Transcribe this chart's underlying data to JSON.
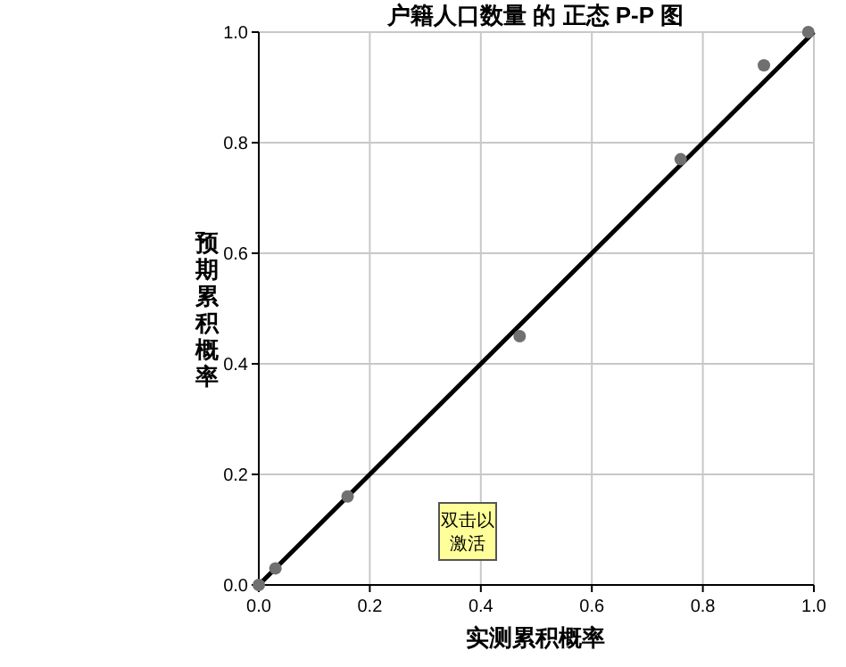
{
  "chart_data": {
    "type": "scatter",
    "title": "户籍人口数量 的 正态 P-P 图",
    "xlabel": "实测累积概率",
    "ylabel": "预期累积概率",
    "annotations": [
      "双击以激活"
    ],
    "series": [
      {
        "color": "#707070",
        "marker": "circle",
        "x": [
          0.0,
          0.03,
          0.16,
          0.47,
          0.76,
          0.91,
          0.99
        ],
        "values": [
          0.0,
          0.03,
          0.16,
          0.45,
          0.77,
          0.94,
          1.0
        ]
      },
      {
        "type": "line",
        "color": "#000000",
        "marker": "none",
        "line_style": "solid",
        "x": [
          0,
          1
        ],
        "values": [
          0,
          1
        ]
      }
    ],
    "xlim": [
      0,
      1
    ],
    "ylim": [
      0,
      1
    ],
    "xticks": [
      {
        "value": 0,
        "label": "0.0"
      },
      {
        "value": 0.2,
        "label": "0.2"
      },
      {
        "value": 0.4,
        "label": "0.4"
      },
      {
        "value": 0.6,
        "label": "0.6"
      },
      {
        "value": 0.8,
        "label": "0.8"
      },
      {
        "value": 1,
        "label": "1.0"
      }
    ],
    "yticks": [
      {
        "value": 0,
        "label": "0.0"
      },
      {
        "value": 0.2,
        "label": "0.2"
      },
      {
        "value": 0.4,
        "label": "0.4"
      },
      {
        "value": 0.6,
        "label": "0.6"
      },
      {
        "value": 0.8,
        "label": "0.8"
      },
      {
        "value": 1,
        "label": "1.0"
      }
    ],
    "grid": true
  }
}
